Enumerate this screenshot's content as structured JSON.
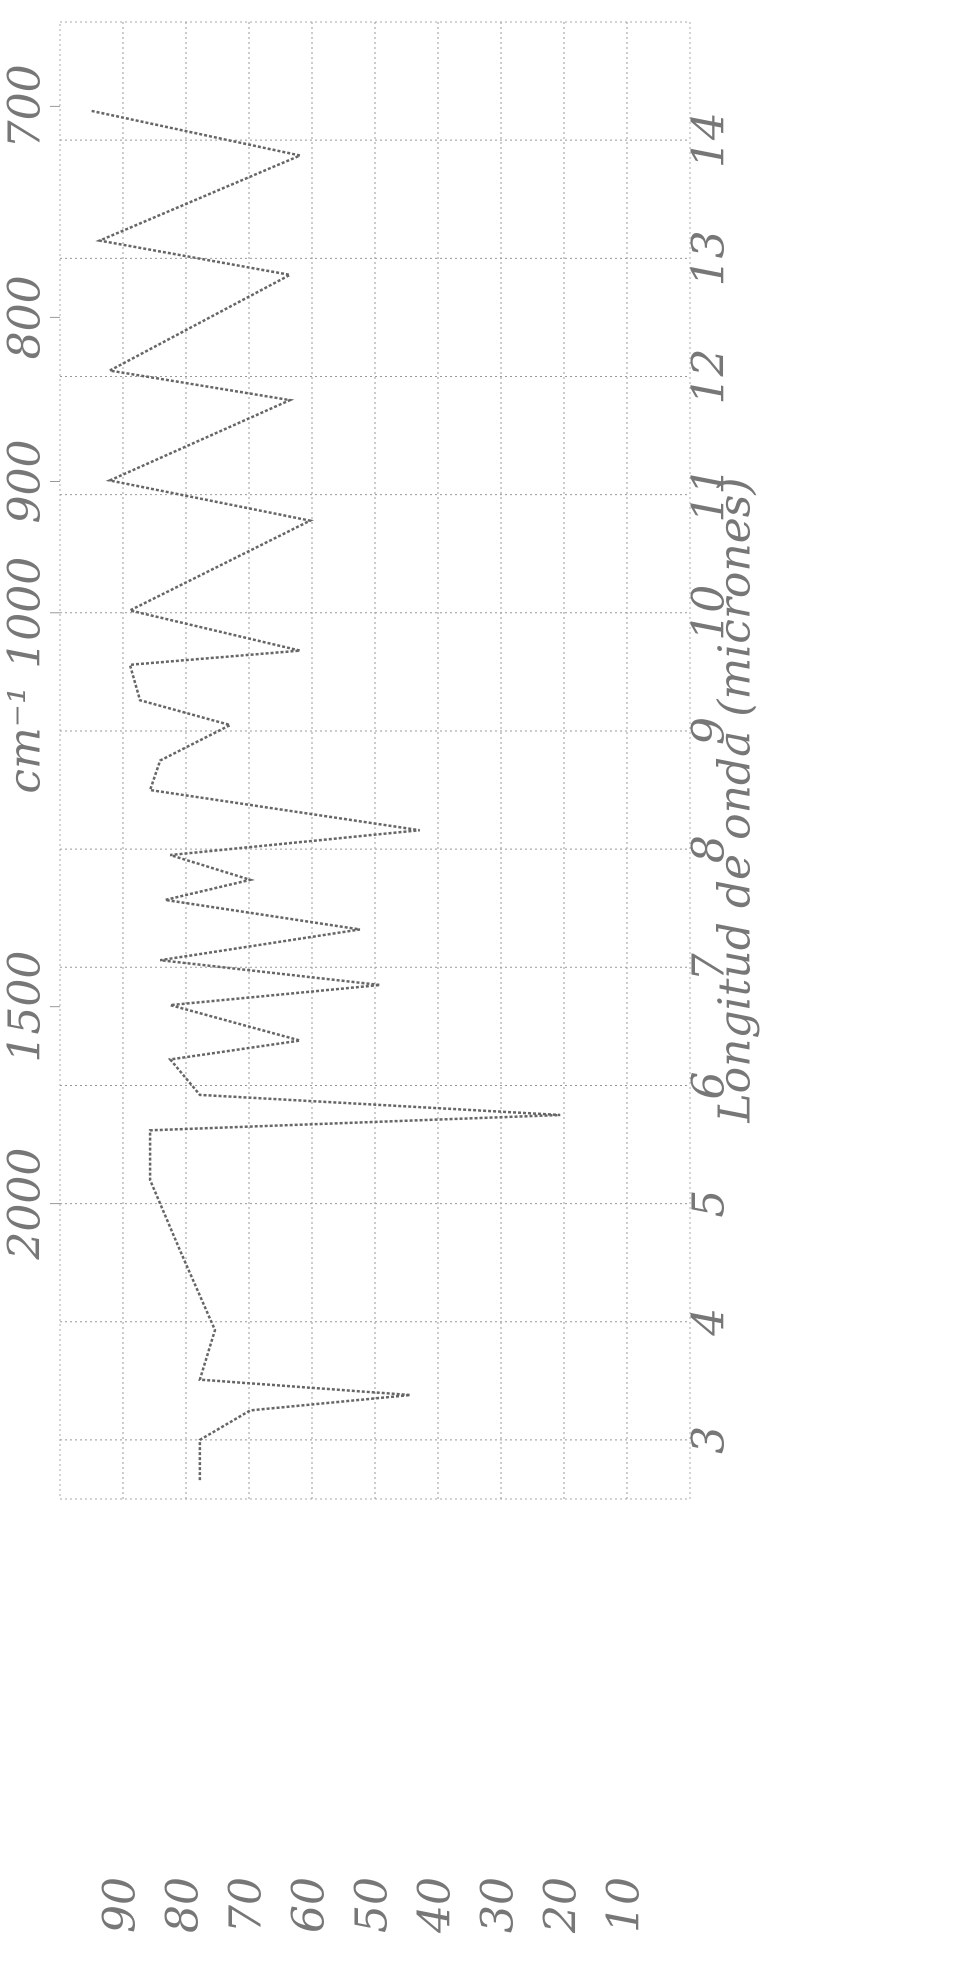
{
  "chart_data": {
    "type": "line",
    "x_label": "Longitud de onda (micrones)",
    "x2_label": "cm⁻¹",
    "x": [
      2.66,
      3.0,
      3.25,
      3.38,
      3.51,
      3.93,
      4.61,
      5.2,
      5.62,
      5.75,
      5.92,
      6.22,
      6.38,
      6.68,
      6.85,
      7.06,
      7.32,
      7.57,
      7.74,
      7.95,
      8.16,
      8.5,
      8.75,
      9.05,
      9.26,
      9.56,
      9.68,
      10.02,
      10.78,
      11.12,
      11.8,
      12.05,
      12.86,
      13.15,
      13.87,
      14.25
    ],
    "values": [
      77.8,
      77.8,
      69.8,
      44.4,
      77.8,
      75.4,
      81,
      85.7,
      85.7,
      20.6,
      77.8,
      82.5,
      61.9,
      82.5,
      49.2,
      84.1,
      52.4,
      83.3,
      69.8,
      82.5,
      42.9,
      85.7,
      84.1,
      73,
      87.3,
      88.9,
      61.9,
      88.9,
      60.3,
      92.1,
      63.5,
      92.1,
      63.5,
      93.7,
      61.9,
      95.2
    ],
    "color": "#666666",
    "xlim": [
      2.5,
      15
    ],
    "xticks": [
      3,
      4,
      5,
      6,
      7,
      8,
      9,
      10,
      11,
      12,
      13,
      14
    ],
    "x2ticks": [
      2000,
      1500,
      1000,
      900,
      800,
      700
    ],
    "ylim": [
      0,
      100
    ],
    "yticks": [
      10,
      20,
      30,
      40,
      50,
      60,
      70,
      80,
      90
    ],
    "grid": true
  }
}
